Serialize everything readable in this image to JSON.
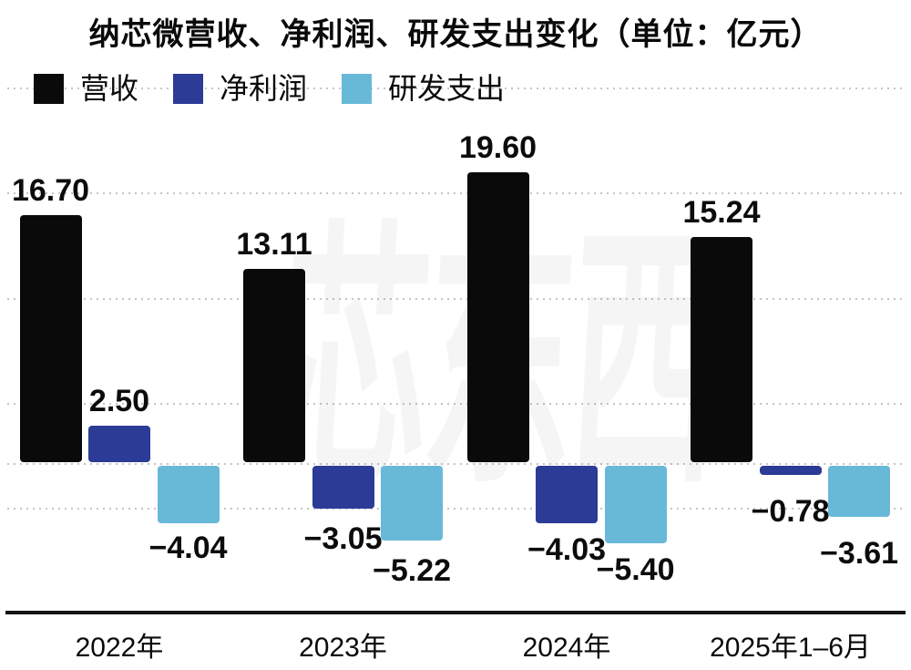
{
  "title": "纳芯微营收、净利润、研发支出变化（单位：亿元）",
  "watermark": "芯东西",
  "legend": {
    "items": [
      {
        "key": "revenue",
        "label": "营收",
        "color": "#0a0a0a"
      },
      {
        "key": "net-profit",
        "label": "净利润",
        "color": "#2b3b96"
      },
      {
        "key": "rd-expense",
        "label": "研发支出",
        "color": "#68b9d8"
      }
    ]
  },
  "chart_data": {
    "type": "bar",
    "title": "纳芯微营收、净利润、研发支出变化",
    "unit": "亿元",
    "categories": [
      "2022年",
      "2023年",
      "2024年",
      "2025年1–6月"
    ],
    "series": [
      {
        "key": "revenue",
        "name": "营收",
        "color": "#0a0a0a",
        "values": [
          16.7,
          13.11,
          19.6,
          15.24
        ]
      },
      {
        "key": "net-profit",
        "name": "净利润",
        "color": "#2b3b96",
        "values": [
          2.5,
          -3.05,
          -4.03,
          -0.78
        ]
      },
      {
        "key": "rd-expense",
        "name": "研发支出",
        "color": "#68b9d8",
        "values": [
          -4.04,
          -5.22,
          -5.4,
          -3.61
        ]
      }
    ],
    "value_label_decimals": 2,
    "grid": "horizontal-dotted",
    "baseline": 0,
    "legend_position": "top-left",
    "ylim": [
      -6,
      26
    ]
  }
}
